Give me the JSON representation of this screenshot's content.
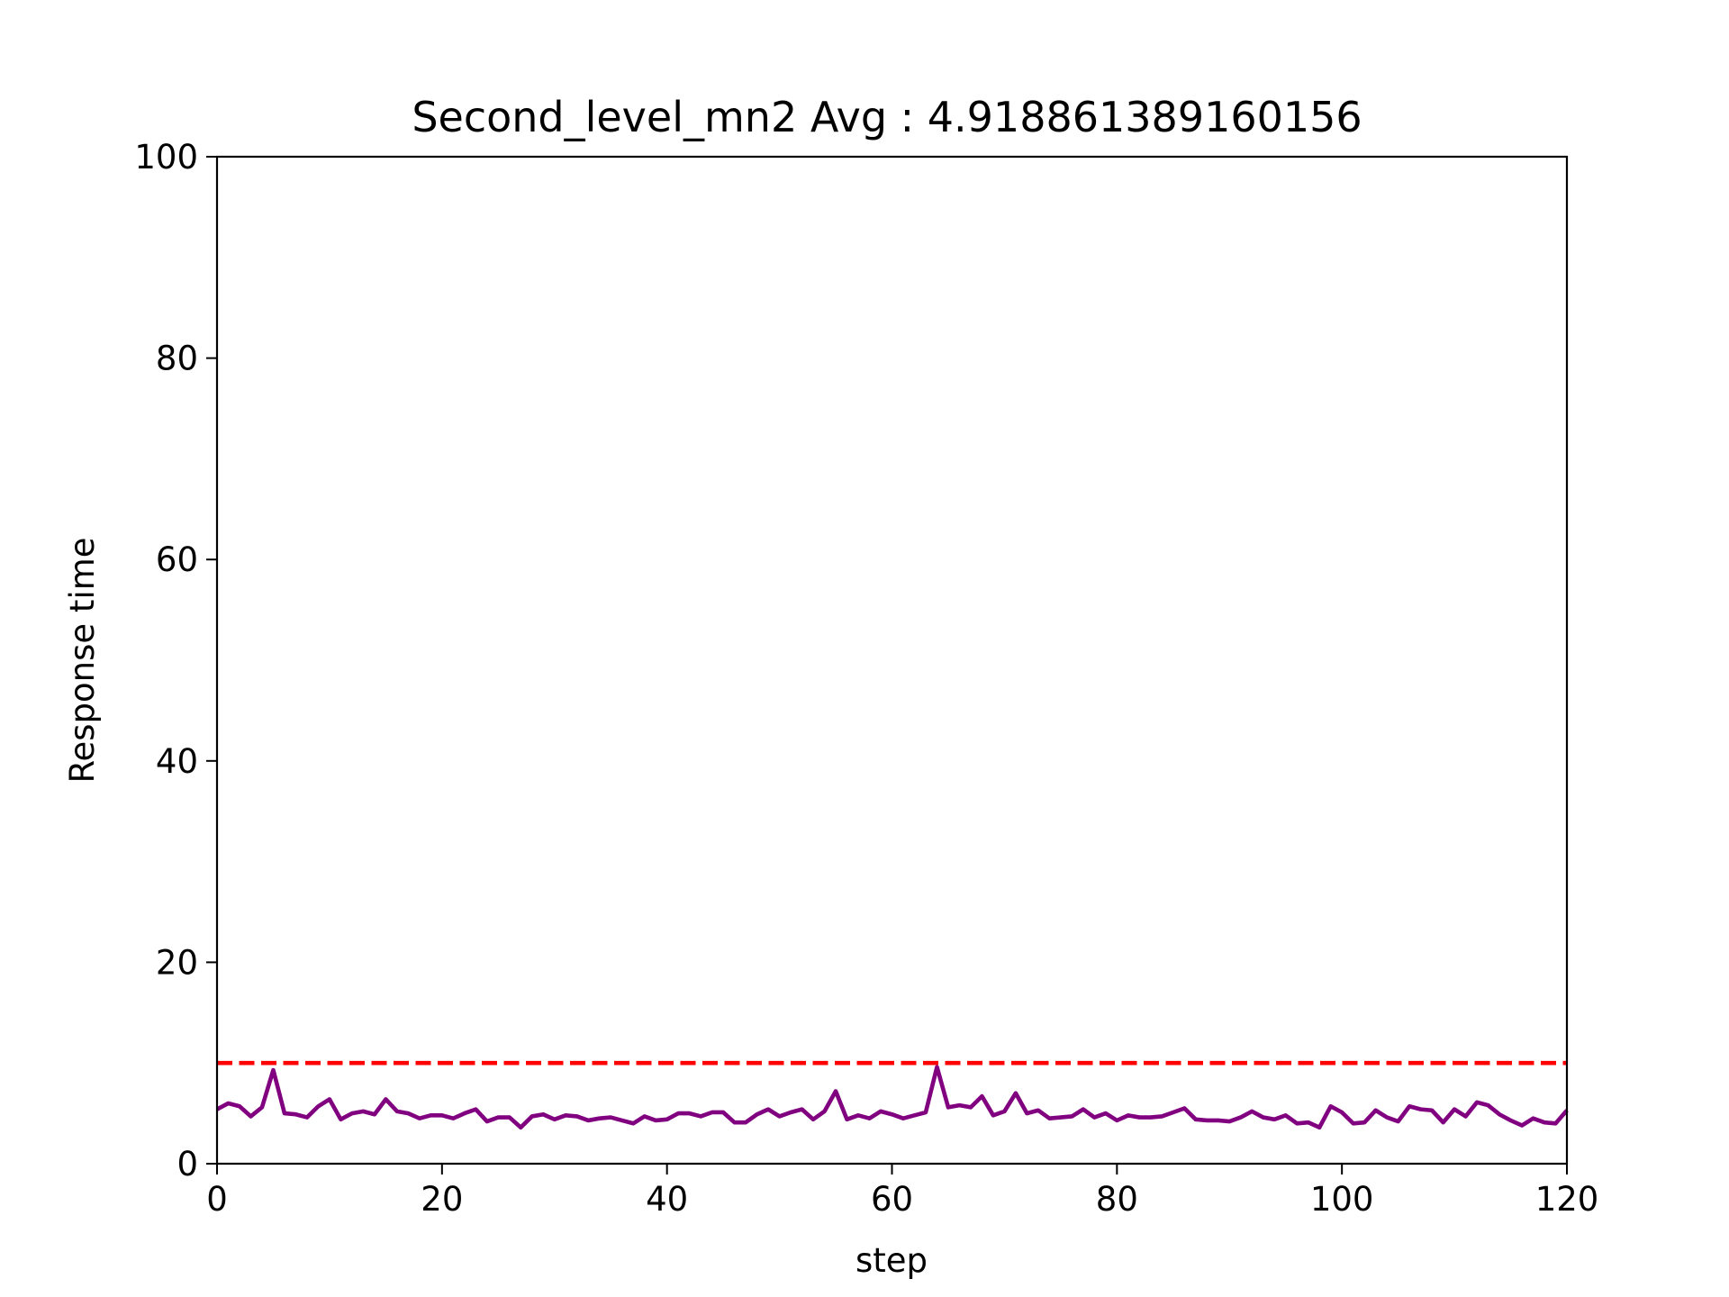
{
  "chart_data": {
    "type": "line",
    "title": "Second_level_mn2 Avg : 4.918861389160156",
    "xlabel": "step",
    "ylabel": "Response time",
    "xlim": [
      0,
      120
    ],
    "ylim": [
      0,
      100
    ],
    "x_ticks": [
      "0",
      "20",
      "40",
      "60",
      "80",
      "100",
      "120"
    ],
    "y_ticks": [
      "0",
      "20",
      "40",
      "60",
      "80",
      "100"
    ],
    "grid": false,
    "legend": "none",
    "series": [
      {
        "color": "#800080",
        "style": "solid",
        "x": [
          0,
          1,
          2,
          3,
          4,
          5,
          6,
          7,
          8,
          9,
          10,
          11,
          12,
          13,
          14,
          15,
          16,
          17,
          18,
          19,
          20,
          21,
          22,
          23,
          24,
          25,
          26,
          27,
          28,
          29,
          30,
          31,
          32,
          33,
          34,
          35,
          36,
          37,
          38,
          39,
          40,
          41,
          42,
          43,
          44,
          45,
          46,
          47,
          48,
          49,
          50,
          51,
          52,
          53,
          54,
          55,
          56,
          57,
          58,
          59,
          60,
          61,
          62,
          63,
          64,
          65,
          66,
          67,
          68,
          69,
          70,
          71,
          72,
          73,
          74,
          75,
          76,
          77,
          78,
          79,
          80,
          81,
          82,
          83,
          84,
          85,
          86,
          87,
          88,
          89,
          90,
          91,
          92,
          93,
          94,
          95,
          96,
          97,
          98,
          99,
          100,
          101,
          102,
          103,
          104,
          105,
          106,
          107,
          108,
          109,
          110,
          111,
          112,
          113,
          114,
          115,
          116,
          117,
          118,
          119,
          120
        ],
        "y": [
          5.4,
          6.0,
          5.7,
          4.7,
          5.6,
          9.3,
          5.0,
          4.9,
          4.6,
          5.7,
          6.4,
          4.4,
          5.0,
          5.2,
          4.9,
          6.4,
          5.2,
          5.0,
          4.5,
          4.8,
          4.8,
          4.5,
          5.0,
          5.4,
          4.2,
          4.6,
          4.6,
          3.6,
          4.7,
          4.9,
          4.4,
          4.8,
          4.7,
          4.3,
          4.5,
          4.6,
          4.3,
          4.0,
          4.7,
          4.3,
          4.4,
          5.0,
          5.0,
          4.7,
          5.1,
          5.1,
          4.1,
          4.1,
          4.9,
          5.4,
          4.7,
          5.1,
          5.4,
          4.4,
          5.2,
          7.2,
          4.4,
          4.8,
          4.5,
          5.2,
          4.9,
          4.5,
          4.8,
          5.1,
          9.6,
          5.6,
          5.8,
          5.6,
          6.7,
          4.8,
          5.2,
          7.0,
          5.0,
          5.3,
          4.5,
          4.6,
          4.7,
          5.4,
          4.6,
          5.0,
          4.3,
          4.8,
          4.6,
          4.6,
          4.7,
          5.1,
          5.5,
          4.4,
          4.3,
          4.3,
          4.2,
          4.6,
          5.2,
          4.6,
          4.4,
          4.8,
          4.0,
          4.1,
          3.6,
          5.7,
          5.1,
          4.0,
          4.1,
          5.3,
          4.6,
          4.2,
          5.7,
          5.4,
          5.3,
          4.1,
          5.4,
          4.7,
          6.1,
          5.8,
          4.9,
          4.3,
          3.8,
          4.5,
          4.1,
          4.0,
          5.3
        ]
      },
      {
        "color": "#ff0000",
        "style": "dashed",
        "x": [
          0,
          120
        ],
        "y": [
          10,
          10
        ]
      }
    ]
  }
}
